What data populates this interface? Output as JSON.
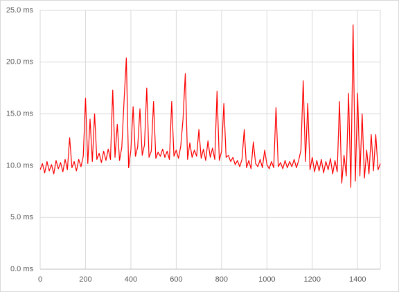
{
  "chart_data": {
    "type": "line",
    "color": "#ff0000",
    "grid": true,
    "xlim": [
      0,
      1500
    ],
    "xticks": [
      0,
      200,
      400,
      600,
      800,
      1000,
      1200,
      1400
    ],
    "ylim": [
      0,
      25
    ],
    "yticks": [
      {
        "value": 0,
        "label": "0.0 ms"
      },
      {
        "value": 5,
        "label": "5.0 ms"
      },
      {
        "value": 10,
        "label": "10.0 ms"
      },
      {
        "value": 15,
        "label": "15.0 ms"
      },
      {
        "value": 20,
        "label": "20.0 ms"
      },
      {
        "value": 25,
        "label": "25.0 ms"
      }
    ],
    "x": [
      0,
      10,
      20,
      30,
      40,
      50,
      60,
      70,
      80,
      90,
      100,
      110,
      120,
      130,
      140,
      150,
      160,
      170,
      180,
      190,
      200,
      210,
      220,
      230,
      240,
      250,
      260,
      270,
      280,
      290,
      300,
      310,
      320,
      330,
      340,
      350,
      360,
      370,
      380,
      390,
      400,
      410,
      420,
      430,
      440,
      450,
      460,
      470,
      480,
      490,
      500,
      510,
      520,
      530,
      540,
      550,
      560,
      570,
      580,
      590,
      600,
      610,
      620,
      630,
      640,
      650,
      660,
      670,
      680,
      690,
      700,
      710,
      720,
      730,
      740,
      750,
      760,
      770,
      780,
      790,
      800,
      810,
      820,
      830,
      840,
      850,
      860,
      870,
      880,
      890,
      900,
      910,
      920,
      930,
      940,
      950,
      960,
      970,
      980,
      990,
      1000,
      1010,
      1020,
      1030,
      1040,
      1050,
      1060,
      1070,
      1080,
      1090,
      1100,
      1110,
      1120,
      1130,
      1140,
      1150,
      1160,
      1170,
      1180,
      1190,
      1200,
      1210,
      1220,
      1230,
      1240,
      1250,
      1260,
      1270,
      1280,
      1290,
      1300,
      1310,
      1320,
      1330,
      1340,
      1350,
      1360,
      1370,
      1380,
      1390,
      1400,
      1410,
      1420,
      1430,
      1440,
      1450,
      1460,
      1470,
      1480,
      1490,
      1500
    ],
    "values": [
      9.6,
      10.2,
      9.3,
      10.4,
      9.5,
      10.1,
      9.2,
      10.5,
      9.7,
      10.3,
      9.4,
      10.6,
      9.6,
      12.7,
      9.8,
      10.4,
      9.5,
      10.6,
      9.9,
      10.9,
      16.5,
      10.2,
      14.5,
      10.4,
      15.0,
      10.6,
      11.2,
      10.3,
      11.4,
      10.5,
      11.6,
      10.6,
      17.3,
      10.8,
      14.0,
      10.5,
      11.8,
      16.3,
      20.4,
      9.8,
      11.5,
      15.7,
      10.9,
      11.8,
      15.5,
      11.0,
      12.0,
      17.5,
      10.8,
      11.4,
      16.2,
      10.7,
      11.3,
      10.9,
      11.6,
      10.8,
      11.4,
      10.6,
      16.2,
      10.9,
      11.5,
      10.7,
      11.9,
      14.5,
      18.9,
      10.6,
      12.2,
      10.8,
      11.5,
      10.9,
      13.5,
      10.7,
      11.6,
      10.5,
      12.4,
      10.8,
      11.7,
      10.6,
      17.2,
      10.5,
      11.4,
      16.0,
      10.8,
      11.0,
      10.4,
      10.8,
      10.1,
      10.5,
      9.9,
      10.6,
      13.5,
      9.8,
      10.5,
      9.7,
      12.3,
      10.2,
      9.9,
      10.6,
      9.8,
      11.5,
      10.1,
      9.7,
      10.4,
      9.8,
      15.6,
      9.9,
      10.3,
      9.7,
      10.5,
      9.8,
      10.4,
      9.9,
      10.6,
      9.8,
      10.5,
      11.5,
      18.2,
      10.4,
      16.0,
      9.6,
      10.8,
      9.4,
      10.5,
      9.5,
      10.6,
      9.3,
      10.4,
      9.6,
      10.7,
      9.2,
      10.5,
      9.4,
      16.2,
      8.3,
      11.0,
      9.0,
      17.0,
      7.9,
      23.6,
      8.5,
      17.0,
      9.0,
      15.0,
      8.8,
      11.5,
      9.2,
      13.0,
      9.5,
      13.0,
      9.6,
      10.2
    ]
  }
}
